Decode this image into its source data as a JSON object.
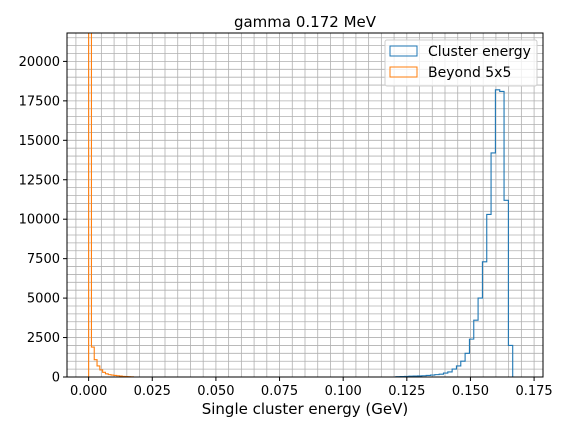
{
  "chart_data": {
    "type": "histogram",
    "title": "gamma 0.172 MeV",
    "xlabel": "Single cluster energy (GeV)",
    "ylabel": "",
    "xlim": [
      -0.0085,
      0.1785
    ],
    "ylim": [
      0,
      21800
    ],
    "grid": true,
    "legend_position": "top-right",
    "x_ticks": [
      0.0,
      0.025,
      0.05,
      0.075,
      0.1,
      0.125,
      0.15,
      0.175
    ],
    "x_tick_labels": [
      "0.000",
      "0.025",
      "0.050",
      "0.075",
      "0.100",
      "0.125",
      "0.150",
      "0.175"
    ],
    "y_ticks": [
      0,
      2500,
      5000,
      7500,
      10000,
      12500,
      15000,
      17500,
      20000
    ],
    "y_tick_labels": [
      "0",
      "2500",
      "5000",
      "7500",
      "10000",
      "12500",
      "15000",
      "17500",
      "20000"
    ],
    "bin_width": 0.0017,
    "series": [
      {
        "name": "Cluster energy",
        "color": "#1f77b4",
        "bin_edges": [
          0.1207,
          0.1224,
          0.1241,
          0.1258,
          0.1275,
          0.1292,
          0.1309,
          0.1326,
          0.1343,
          0.136,
          0.1377,
          0.1394,
          0.1411,
          0.1428,
          0.1445,
          0.1462,
          0.1479,
          0.1496,
          0.1513,
          0.153,
          0.1547,
          0.1564,
          0.1581,
          0.1598,
          0.1615,
          0.1632,
          0.1649,
          0.1666,
          0.1683
        ],
        "values": [
          20,
          30,
          40,
          50,
          60,
          70,
          80,
          100,
          120,
          150,
          180,
          250,
          320,
          500,
          700,
          1000,
          1500,
          2400,
          3600,
          5000,
          7300,
          10300,
          14200,
          18200,
          18100,
          11200,
          2000,
          0
        ]
      },
      {
        "name": "Beyond 5x5",
        "color": "#ff7f0e",
        "bin_edges": [
          0.0,
          0.0011,
          0.0022,
          0.0033,
          0.0044,
          0.0055,
          0.0066,
          0.0077,
          0.0088,
          0.0099,
          0.011,
          0.0121,
          0.0132,
          0.0143,
          0.0154,
          0.0165,
          0.0176
        ],
        "values": [
          21800,
          1900,
          1100,
          700,
          450,
          300,
          200,
          150,
          120,
          100,
          80,
          60,
          40,
          30,
          20,
          10
        ]
      }
    ]
  }
}
